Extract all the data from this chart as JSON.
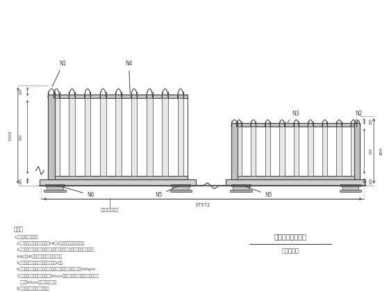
{
  "bg_color": "#ffffff",
  "line_color": "#404040",
  "title": "交口处护栏立面图",
  "subtitle": "绿化渐变段",
  "notes_header": "说明：",
  "notes": [
    "1.本图尺寸均以毫米计.",
    "2.交口处中央防撞护栏缩化，距5#杆3千撤更，需更换如图所求.",
    "3.反光片为三面护栏一面，一也分两截护一夹（车端护栏一夹立柱距侧灯孔）.",
    "4.N2与N5接缝处力的所有金镶及室用锁.",
    "5.护栏安装后顶口持平，不平度不大于2毫末.",
    "6.所有钢镶弯固整平，所有铁件均采用热浸镀锌处理，镀件量为500g/m.",
    "7.防腐采用环氧氯朊防底漆涂度（60um），面板做可克油脂胶封遮美脑面漆",
    "   涂度（60um），面漆为乳白色.",
    "8.工程量参照正常路段工程数量."
  ],
  "label_N1": "N1",
  "label_N2": "N2",
  "label_N3": "N3",
  "label_N4": "N4",
  "label_N5a": "N5",
  "label_N5b": "N5",
  "label_N6": "N6",
  "bottom_label": "道路销档柱底座",
  "bottom_dim": "37572",
  "dim_1300": "1300",
  "dim_800": "800",
  "dim_185": "185",
  "dim_340": "340",
  "dim_165a": "165",
  "dim_165b": "165"
}
